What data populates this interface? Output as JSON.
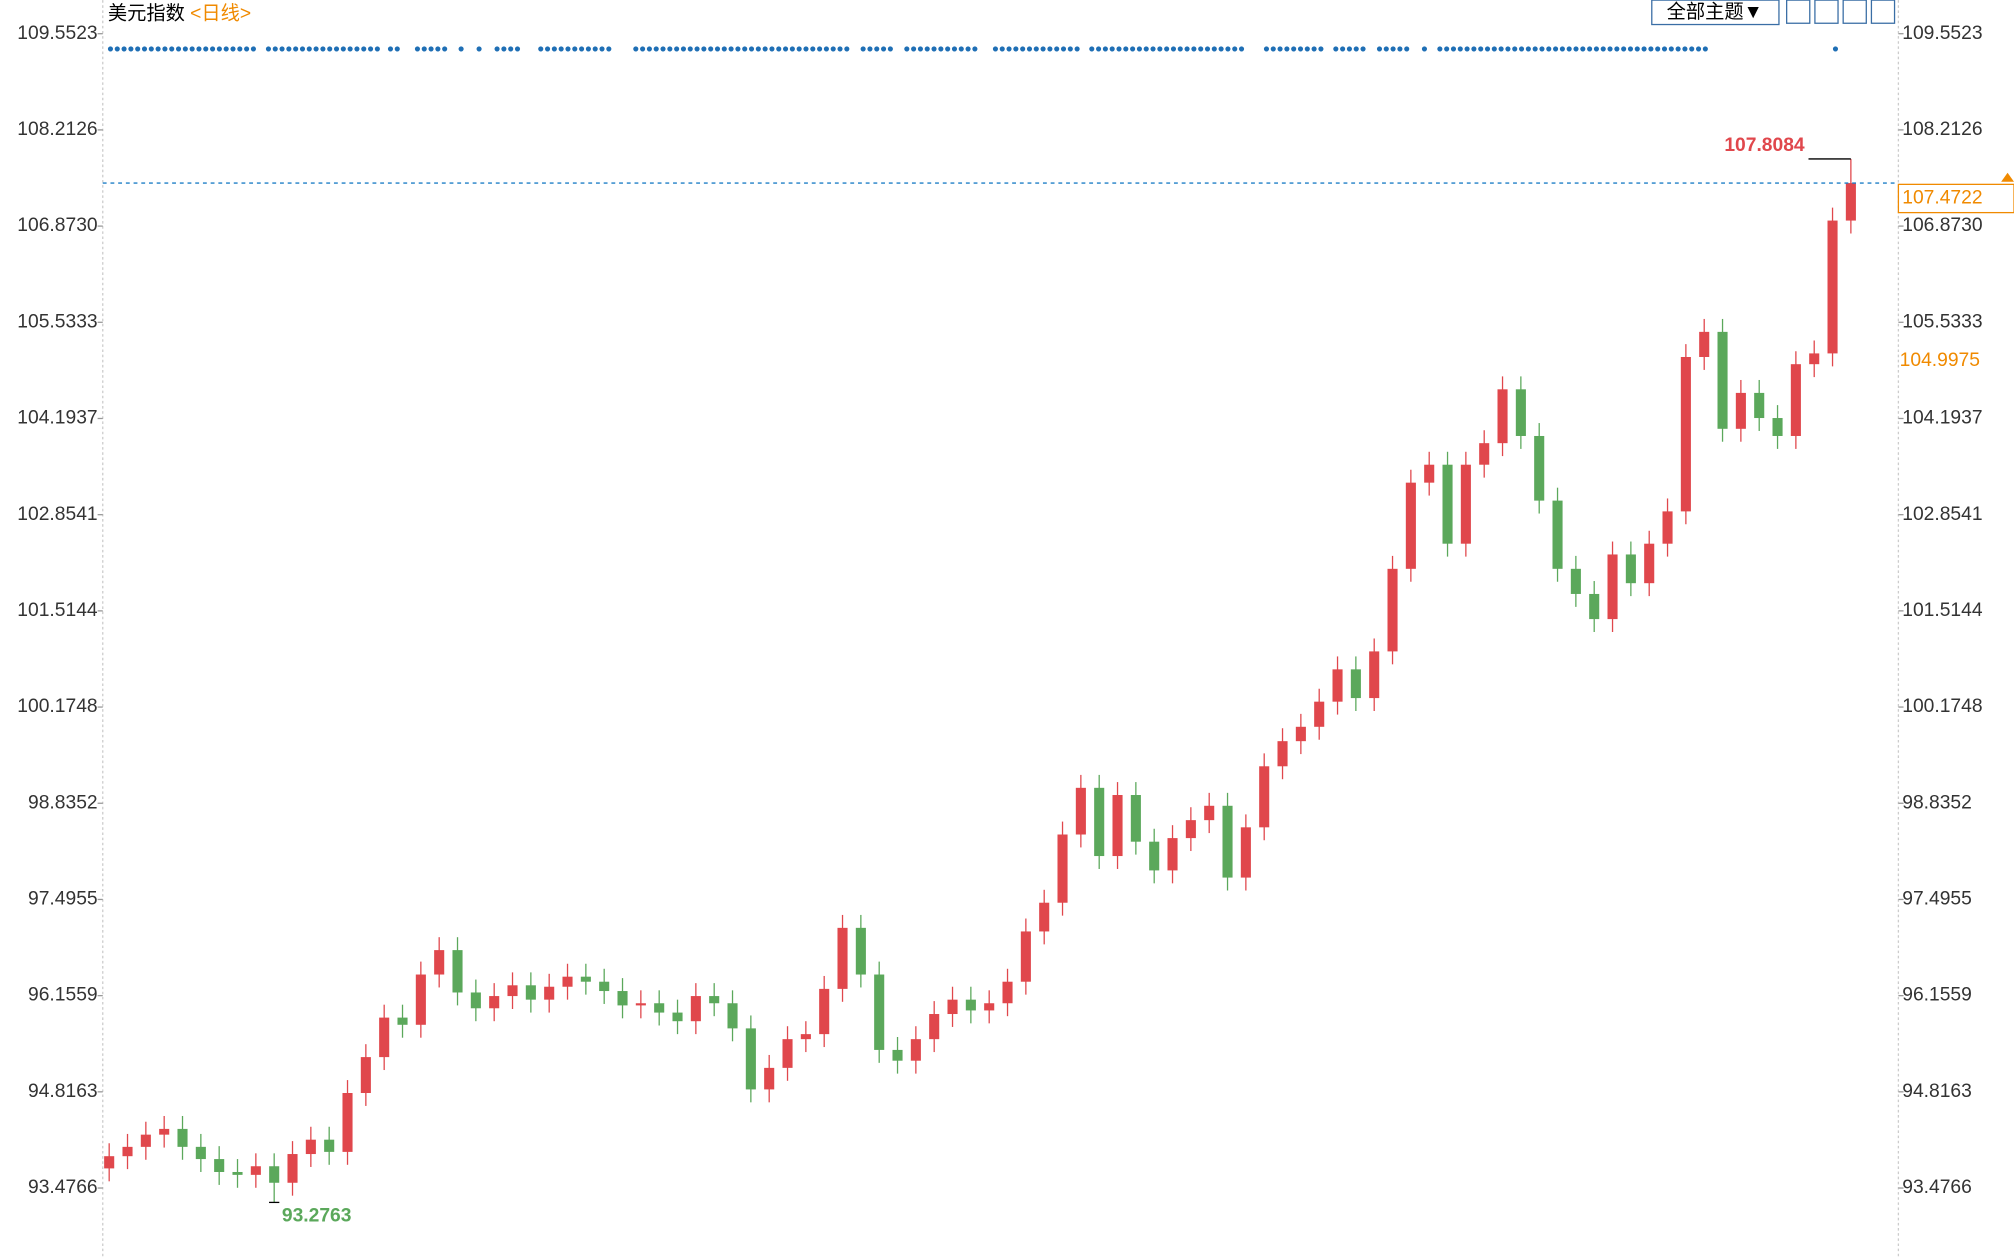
{
  "chart_data": {
    "type": "candlestick",
    "title": "美元指数",
    "period": "<日线>",
    "open": [
      93.75,
      93.92,
      94.05,
      94.22,
      94.3,
      94.05,
      93.88,
      93.7,
      93.66,
      93.78,
      93.55,
      93.95,
      94.15,
      93.98,
      94.8,
      95.3,
      95.85,
      95.75,
      96.45,
      96.79,
      96.2,
      95.98,
      96.15,
      96.3,
      96.1,
      96.28,
      96.42,
      96.35,
      96.22,
      96.02,
      96.05,
      95.92,
      95.8,
      96.15,
      96.05,
      95.7,
      94.85,
      95.15,
      95.55,
      95.62,
      96.25,
      97.1,
      96.45,
      95.4,
      95.25,
      95.55,
      95.9,
      96.1,
      95.95,
      96.05,
      96.35,
      97.05,
      97.45,
      98.4,
      99.05,
      98.1,
      98.95,
      98.3,
      97.9,
      98.35,
      98.6,
      98.8,
      97.8,
      98.5,
      99.35,
      99.7,
      99.9,
      100.25,
      100.7,
      100.3,
      100.95,
      102.1,
      103.3,
      103.55,
      102.45,
      103.55,
      103.85,
      104.6,
      103.95,
      103.05,
      102.1,
      101.75,
      101.4,
      102.3,
      101.9,
      102.45,
      102.9,
      105.05,
      105.4,
      104.05,
      104.55,
      104.2,
      103.95,
      104.95,
      105.1,
      106.95
    ],
    "high": [
      94.1,
      94.23,
      94.4,
      94.48,
      94.48,
      94.23,
      94.06,
      93.88,
      93.96,
      93.96,
      94.13,
      94.33,
      94.33,
      94.98,
      95.48,
      96.03,
      96.03,
      96.63,
      96.97,
      96.97,
      96.38,
      96.33,
      96.48,
      96.48,
      96.46,
      96.6,
      96.6,
      96.53,
      96.4,
      96.23,
      96.23,
      96.1,
      96.33,
      96.33,
      96.23,
      95.88,
      95.33,
      95.73,
      95.8,
      96.43,
      97.28,
      97.28,
      96.63,
      95.58,
      95.73,
      96.08,
      96.28,
      96.28,
      96.23,
      96.53,
      97.23,
      97.63,
      98.58,
      99.23,
      99.23,
      99.13,
      99.13,
      98.48,
      98.53,
      98.78,
      98.98,
      98.98,
      98.68,
      99.53,
      99.88,
      100.08,
      100.43,
      100.88,
      100.88,
      101.13,
      102.28,
      103.48,
      103.73,
      103.73,
      103.73,
      104.03,
      104.78,
      104.78,
      104.13,
      103.23,
      102.28,
      101.93,
      102.48,
      102.48,
      102.63,
      103.08,
      105.23,
      105.58,
      105.58,
      104.73,
      104.73,
      104.38,
      105.13,
      105.28,
      107.13,
      107.8084
    ],
    "low": [
      93.57,
      93.74,
      93.87,
      94.04,
      93.87,
      93.7,
      93.52,
      93.48,
      93.48,
      93.2763,
      93.37,
      93.77,
      93.8,
      93.8,
      94.62,
      95.12,
      95.57,
      95.57,
      96.27,
      96.02,
      95.8,
      95.8,
      95.97,
      95.92,
      95.92,
      96.1,
      96.17,
      96.04,
      95.84,
      95.84,
      95.74,
      95.62,
      95.62,
      95.87,
      95.52,
      94.67,
      94.67,
      94.97,
      95.37,
      95.44,
      96.07,
      96.27,
      95.22,
      95.07,
      95.07,
      95.37,
      95.72,
      95.77,
      95.77,
      95.87,
      96.17,
      96.87,
      97.27,
      98.22,
      97.92,
      97.92,
      98.12,
      97.72,
      97.72,
      98.17,
      98.42,
      97.62,
      97.62,
      98.32,
      99.17,
      99.52,
      99.72,
      100.07,
      100.12,
      100.12,
      100.77,
      101.92,
      103.12,
      102.27,
      102.27,
      103.37,
      103.67,
      103.77,
      102.87,
      101.92,
      101.57,
      101.22,
      101.22,
      101.72,
      101.72,
      102.27,
      102.72,
      104.87,
      103.87,
      103.87,
      104.02,
      103.77,
      103.77,
      104.77,
      104.92,
      106.77
    ],
    "close": [
      93.92,
      94.05,
      94.22,
      94.3,
      94.05,
      93.88,
      93.7,
      93.66,
      93.78,
      93.55,
      93.95,
      94.15,
      93.98,
      94.8,
      95.3,
      95.85,
      95.75,
      96.45,
      96.79,
      96.2,
      95.98,
      96.15,
      96.3,
      96.1,
      96.28,
      96.42,
      96.35,
      96.22,
      96.02,
      96.05,
      95.92,
      95.8,
      96.15,
      96.05,
      95.7,
      94.85,
      95.15,
      95.55,
      95.62,
      96.25,
      97.1,
      96.45,
      95.4,
      95.25,
      95.55,
      95.9,
      96.1,
      95.95,
      96.05,
      96.35,
      97.05,
      97.45,
      98.4,
      99.05,
      98.1,
      98.95,
      98.3,
      97.9,
      98.35,
      98.6,
      98.8,
      97.8,
      98.5,
      99.35,
      99.7,
      99.9,
      100.25,
      100.7,
      100.3,
      100.95,
      102.1,
      103.3,
      103.55,
      102.45,
      103.55,
      103.85,
      104.6,
      103.95,
      103.05,
      102.1,
      101.75,
      101.4,
      102.3,
      101.9,
      102.45,
      102.9,
      105.05,
      105.4,
      104.05,
      104.55,
      104.2,
      103.95,
      104.95,
      105.1,
      106.95,
      107.4722
    ],
    "up_color": "#e0474c",
    "down_color": "#5ba85b",
    "ylim": [
      92.49,
      110.02
    ],
    "yticks": [
      109.5523,
      108.2126,
      {
        "value": 106.873,
        "label": "106.8730"
      },
      105.5333,
      104.1937,
      102.8541,
      101.5144,
      100.1748,
      98.8352,
      97.4955,
      96.1559,
      94.8163,
      93.4766
    ],
    "annotations": {
      "high": 107.8084,
      "low": 93.2763,
      "last": 107.4722,
      "marker": 104.9975
    }
  },
  "toolbar": {
    "theme": "全部主题▼"
  }
}
